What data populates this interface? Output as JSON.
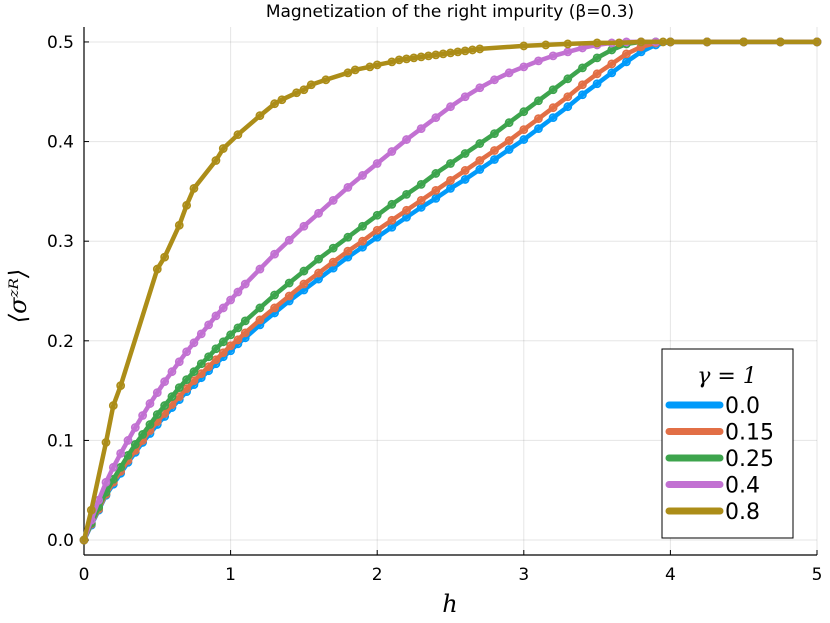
{
  "chart_data": {
    "type": "line",
    "title": "Magnetization of the right impurity (β=0.3)",
    "xlabel": "h",
    "ylabel": "⟨σᶻᴿ⟩",
    "xlim": [
      0,
      5
    ],
    "ylim": [
      -0.015,
      0.515
    ],
    "xticks": [
      0,
      1,
      2,
      3,
      4,
      5
    ],
    "xtick_labels": [
      "0",
      "1",
      "2",
      "3",
      "4",
      "5"
    ],
    "yticks": [
      0.0,
      0.1,
      0.2,
      0.3,
      0.4,
      0.5
    ],
    "ytick_labels": [
      "0.0",
      "0.1",
      "0.2",
      "0.3",
      "0.4",
      "0.5"
    ],
    "grid": true,
    "legend_title": "γ = 1",
    "legend_position": "bottom-right",
    "series": [
      {
        "name": "0.0",
        "color": "#009AFA",
        "x": [
          0,
          0.05,
          0.1,
          0.15,
          0.2,
          0.25,
          0.3,
          0.35,
          0.4,
          0.45,
          0.5,
          0.55,
          0.6,
          0.65,
          0.7,
          0.75,
          0.8,
          0.85,
          0.9,
          0.95,
          1.0,
          1.05,
          1.1,
          1.2,
          1.3,
          1.4,
          1.5,
          1.6,
          1.7,
          1.8,
          1.9,
          2.0,
          2.1,
          2.2,
          2.3,
          2.4,
          2.5,
          2.6,
          2.7,
          2.8,
          2.9,
          3.0,
          3.1,
          3.2,
          3.3,
          3.4,
          3.5,
          3.6,
          3.7,
          3.8,
          3.9,
          4.0,
          4.25,
          4.5,
          4.75,
          5.0
        ],
        "y": [
          0.0,
          0.015,
          0.03,
          0.045,
          0.056,
          0.067,
          0.078,
          0.088,
          0.098,
          0.107,
          0.116,
          0.124,
          0.133,
          0.141,
          0.149,
          0.156,
          0.163,
          0.17,
          0.177,
          0.184,
          0.19,
          0.197,
          0.203,
          0.216,
          0.228,
          0.24,
          0.251,
          0.262,
          0.273,
          0.284,
          0.294,
          0.304,
          0.314,
          0.324,
          0.334,
          0.343,
          0.353,
          0.362,
          0.372,
          0.382,
          0.392,
          0.402,
          0.413,
          0.424,
          0.435,
          0.447,
          0.458,
          0.469,
          0.48,
          0.49,
          0.497,
          0.5,
          0.5,
          0.5,
          0.5,
          0.5
        ]
      },
      {
        "name": "0.15",
        "color": "#E26F46",
        "x": [
          0,
          0.05,
          0.1,
          0.15,
          0.2,
          0.25,
          0.3,
          0.35,
          0.4,
          0.45,
          0.5,
          0.55,
          0.6,
          0.65,
          0.7,
          0.75,
          0.8,
          0.85,
          0.9,
          0.95,
          1.0,
          1.05,
          1.1,
          1.2,
          1.3,
          1.4,
          1.5,
          1.6,
          1.7,
          1.8,
          1.9,
          2.0,
          2.1,
          2.2,
          2.3,
          2.4,
          2.5,
          2.6,
          2.7,
          2.8,
          2.9,
          3.0,
          3.1,
          3.2,
          3.3,
          3.4,
          3.5,
          3.6,
          3.7,
          3.8,
          3.9,
          4.0,
          4.25,
          4.5,
          4.75,
          5.0
        ],
        "y": [
          0.0,
          0.016,
          0.031,
          0.046,
          0.058,
          0.069,
          0.08,
          0.09,
          0.1,
          0.11,
          0.119,
          0.127,
          0.136,
          0.144,
          0.152,
          0.16,
          0.167,
          0.174,
          0.181,
          0.188,
          0.195,
          0.201,
          0.208,
          0.221,
          0.233,
          0.245,
          0.257,
          0.268,
          0.279,
          0.29,
          0.3,
          0.311,
          0.321,
          0.331,
          0.341,
          0.351,
          0.361,
          0.371,
          0.381,
          0.391,
          0.401,
          0.412,
          0.423,
          0.434,
          0.445,
          0.457,
          0.468,
          0.478,
          0.488,
          0.495,
          0.499,
          0.5,
          0.5,
          0.5,
          0.5,
          0.5
        ]
      },
      {
        "name": "0.25",
        "color": "#3DA44D",
        "x": [
          0,
          0.05,
          0.1,
          0.15,
          0.2,
          0.25,
          0.3,
          0.35,
          0.4,
          0.45,
          0.5,
          0.55,
          0.6,
          0.65,
          0.7,
          0.75,
          0.8,
          0.85,
          0.9,
          0.95,
          1.0,
          1.05,
          1.1,
          1.2,
          1.3,
          1.4,
          1.5,
          1.6,
          1.7,
          1.8,
          1.9,
          2.0,
          2.1,
          2.2,
          2.3,
          2.4,
          2.5,
          2.6,
          2.7,
          2.8,
          2.9,
          3.0,
          3.1,
          3.2,
          3.3,
          3.4,
          3.5,
          3.6,
          3.7,
          3.8,
          3.9,
          4.0,
          4.25,
          4.5,
          4.75,
          5.0
        ],
        "y": [
          0.0,
          0.017,
          0.033,
          0.048,
          0.061,
          0.073,
          0.085,
          0.096,
          0.106,
          0.116,
          0.126,
          0.135,
          0.144,
          0.153,
          0.161,
          0.169,
          0.177,
          0.184,
          0.192,
          0.199,
          0.206,
          0.213,
          0.22,
          0.233,
          0.246,
          0.258,
          0.27,
          0.282,
          0.293,
          0.304,
          0.315,
          0.326,
          0.337,
          0.347,
          0.357,
          0.368,
          0.378,
          0.388,
          0.398,
          0.408,
          0.419,
          0.43,
          0.441,
          0.452,
          0.463,
          0.474,
          0.484,
          0.492,
          0.498,
          0.5,
          0.5,
          0.5,
          0.5,
          0.5,
          0.5,
          0.5
        ]
      },
      {
        "name": "0.4",
        "color": "#C271D2",
        "x": [
          0,
          0.05,
          0.1,
          0.15,
          0.2,
          0.25,
          0.3,
          0.35,
          0.4,
          0.45,
          0.5,
          0.55,
          0.6,
          0.65,
          0.7,
          0.75,
          0.8,
          0.85,
          0.9,
          0.95,
          1.0,
          1.05,
          1.1,
          1.2,
          1.3,
          1.4,
          1.5,
          1.6,
          1.7,
          1.8,
          1.9,
          2.0,
          2.1,
          2.2,
          2.3,
          2.4,
          2.5,
          2.6,
          2.7,
          2.8,
          2.9,
          3.0,
          3.1,
          3.2,
          3.3,
          3.4,
          3.5,
          3.6,
          3.7,
          3.8,
          3.9,
          4.0,
          4.25,
          4.5,
          4.75,
          5.0
        ],
        "y": [
          0.0,
          0.02,
          0.04,
          0.058,
          0.073,
          0.087,
          0.1,
          0.113,
          0.125,
          0.137,
          0.148,
          0.159,
          0.169,
          0.179,
          0.189,
          0.198,
          0.207,
          0.216,
          0.225,
          0.233,
          0.241,
          0.249,
          0.257,
          0.272,
          0.287,
          0.301,
          0.315,
          0.328,
          0.341,
          0.354,
          0.366,
          0.378,
          0.39,
          0.402,
          0.413,
          0.424,
          0.435,
          0.445,
          0.454,
          0.462,
          0.469,
          0.475,
          0.481,
          0.486,
          0.49,
          0.494,
          0.497,
          0.499,
          0.5,
          0.5,
          0.5,
          0.5,
          0.5,
          0.5,
          0.5,
          0.5
        ]
      },
      {
        "name": "0.8",
        "color": "#AC8D18",
        "x": [
          0,
          0.05,
          0.15,
          0.2,
          0.25,
          0.5,
          0.55,
          0.65,
          0.7,
          0.75,
          0.9,
          0.95,
          1.05,
          1.2,
          1.3,
          1.35,
          1.45,
          1.5,
          1.55,
          1.65,
          1.8,
          1.85,
          1.95,
          2.0,
          2.1,
          2.15,
          2.2,
          2.25,
          2.3,
          2.35,
          2.4,
          2.45,
          2.5,
          2.55,
          2.6,
          2.65,
          2.7,
          3.0,
          3.15,
          3.3,
          3.5,
          3.65,
          3.8,
          3.95,
          4.0,
          4.25,
          4.5,
          4.75,
          5.0
        ],
        "y": [
          0.0,
          0.03,
          0.098,
          0.135,
          0.155,
          0.272,
          0.284,
          0.316,
          0.336,
          0.353,
          0.381,
          0.393,
          0.407,
          0.426,
          0.438,
          0.442,
          0.449,
          0.452,
          0.457,
          0.462,
          0.469,
          0.472,
          0.475,
          0.477,
          0.48,
          0.482,
          0.483,
          0.484,
          0.485,
          0.486,
          0.487,
          0.488,
          0.489,
          0.49,
          0.491,
          0.492,
          0.493,
          0.496,
          0.497,
          0.498,
          0.499,
          0.499,
          0.5,
          0.5,
          0.5,
          0.5,
          0.5,
          0.5,
          0.5
        ]
      }
    ]
  }
}
